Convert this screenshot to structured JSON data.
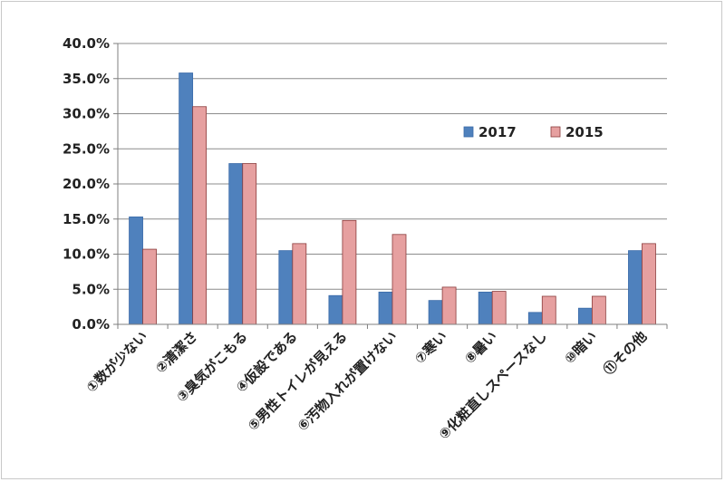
{
  "chart_data": {
    "type": "bar",
    "categories": [
      "①数が少ない",
      "②清潔さ",
      "③臭気がこもる",
      "④仮設である",
      "⑤男性トイレが見える",
      "⑥汚物入れが置けない",
      "⑦寒い",
      "⑧暑い",
      "⑨化粧直しスペースなし",
      "⑩暗い",
      "⑪その他"
    ],
    "series": [
      {
        "name": "2017",
        "color": "#4f81bd",
        "values": [
          15.3,
          35.8,
          22.9,
          10.5,
          4.1,
          4.6,
          3.4,
          4.6,
          1.7,
          2.3,
          10.5
        ]
      },
      {
        "name": "2015",
        "color": "#e6a0a0",
        "values": [
          10.7,
          31.0,
          22.9,
          11.5,
          14.8,
          12.8,
          5.3,
          4.7,
          4.0,
          4.0,
          11.5
        ]
      }
    ],
    "ylim": [
      0,
      40
    ],
    "yticks": [
      "0.0%",
      "5.0%",
      "10.0%",
      "15.0%",
      "20.0%",
      "25.0%",
      "30.0%",
      "35.0%",
      "40.0%"
    ],
    "ytick_values": [
      0,
      5,
      10,
      15,
      20,
      25,
      30,
      35,
      40
    ],
    "grid": true,
    "legend_position": "upper-right",
    "title": "",
    "xlabel": "",
    "ylabel": ""
  }
}
